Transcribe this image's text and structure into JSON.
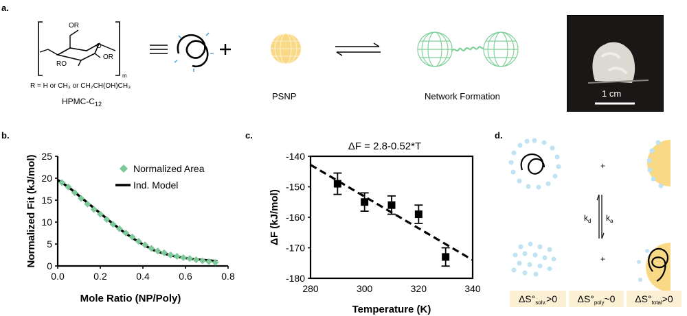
{
  "panels": {
    "a": {
      "label": "a.",
      "substituent_top": "OR",
      "substituent_left": "RO",
      "substituent_right": "OR",
      "subscript_m": "m",
      "r_definition": "R = H or CH₃ or CH₂CH(OH)CH₃",
      "polymer_name": "HPMC-C",
      "polymer_subscript": "12",
      "nanoparticle_name": "PSNP",
      "network_label": "Network Formation",
      "scale_bar_label": "1 cm",
      "colors": {
        "nanoparticle": "#f9d985",
        "network": "#7fcf9a",
        "polymer": "#000000",
        "chains": "#5aa9d6"
      }
    },
    "b": {
      "label": "b.",
      "chart_data": {
        "type": "scatter",
        "xlabel": "Mole Ratio (NP/Poly)",
        "ylabel": "Normalized Fit (kJ/mol)",
        "xlim": [
          0.0,
          0.8
        ],
        "ylim": [
          0,
          25
        ],
        "xticks": [
          "0.0",
          "0.2",
          "0.4",
          "0.6",
          "0.8"
        ],
        "yticks": [
          "0",
          "5",
          "10",
          "15",
          "20",
          "25"
        ],
        "legend_position": "top-right",
        "series": [
          {
            "name": "Normalized Area",
            "marker": "diamond",
            "color": "#7ec99a",
            "x": [
              0.02,
              0.05,
              0.08,
              0.11,
              0.14,
              0.17,
              0.2,
              0.23,
              0.26,
              0.29,
              0.32,
              0.35,
              0.38,
              0.41,
              0.44,
              0.47,
              0.5,
              0.53,
              0.56,
              0.59,
              0.62,
              0.65,
              0.68,
              0.71,
              0.74
            ],
            "y": [
              19.0,
              18.0,
              16.7,
              15.4,
              14.1,
              12.9,
              11.8,
              10.6,
              9.5,
              8.5,
              7.5,
              6.6,
              5.6,
              4.8,
              4.0,
              3.4,
              3.0,
              2.5,
              2.2,
              1.9,
              1.7,
              1.4,
              1.2,
              1.0,
              0.8
            ]
          },
          {
            "name": "Ind. Model",
            "marker": "line",
            "color": "#000000",
            "x": [
              0.0,
              0.05,
              0.1,
              0.15,
              0.2,
              0.25,
              0.3,
              0.35,
              0.4,
              0.45,
              0.5,
              0.55,
              0.6,
              0.65,
              0.7,
              0.75
            ],
            "y": [
              19.6,
              18.0,
              16.0,
              14.0,
              12.0,
              10.0,
              8.1,
              6.4,
              4.9,
              3.6,
              2.8,
              2.2,
              1.8,
              1.5,
              1.3,
              1.1
            ]
          }
        ]
      }
    },
    "c": {
      "label": "c.",
      "chart_data": {
        "type": "scatter",
        "title": "ΔF = 2.8-0.52*T",
        "xlabel": "Temperature (K)",
        "ylabel": "ΔF (kJ/mol)",
        "xlim": [
          280,
          340
        ],
        "ylim": [
          -180,
          -140
        ],
        "xticks": [
          "280",
          "300",
          "320",
          "340"
        ],
        "yticks": [
          "-140",
          "-150",
          "-160",
          "-170",
          "-180"
        ],
        "series": [
          {
            "name": "",
            "marker": "square",
            "color": "#000000",
            "x": [
              290,
              300,
              310,
              320,
              330
            ],
            "y": [
              -149,
              -155,
              -156,
              -159,
              -173
            ],
            "err": [
              3.5,
              3.0,
              3.0,
              3.0,
              3.0
            ]
          },
          {
            "name": "",
            "marker": "dashed-line",
            "color": "#000000",
            "x": [
              280,
              340
            ],
            "y": [
              -142.8,
              -174.0
            ]
          }
        ]
      }
    },
    "d": {
      "label": "d.",
      "plus_top": "+",
      "plus_bottom": "+",
      "rate_kd": "k",
      "rate_kd_sub": "d",
      "rate_ka": "k",
      "rate_ka_sub": "a",
      "entropy": [
        {
          "main": "ΔS°",
          "sub": "solv.",
          "rel": ">0"
        },
        {
          "main": "ΔS°",
          "sub": "poly",
          "rel": "~0"
        },
        {
          "main": "ΔS°",
          "sub": "total",
          "rel": ">0"
        }
      ],
      "colors": {
        "solvent": "#bfe3f3",
        "particle": "#f9d985"
      }
    }
  }
}
